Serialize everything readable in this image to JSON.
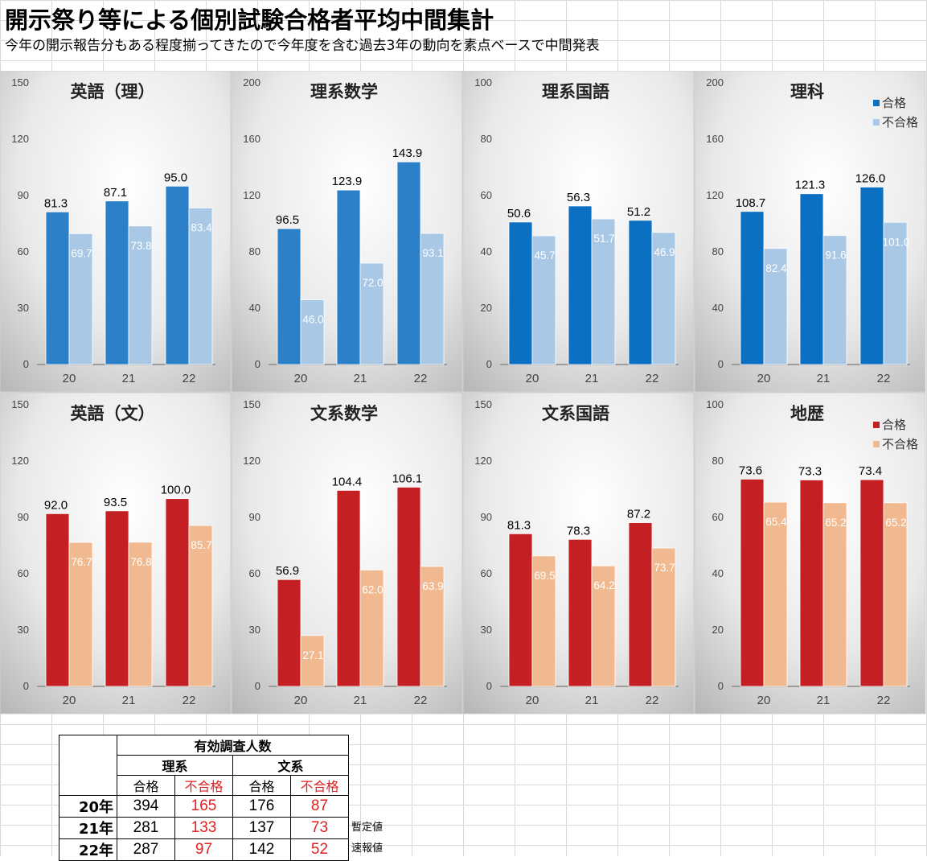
{
  "header": {
    "title": "開示祭り等による個別試験合格者平均中間集計",
    "subtitle": "今年の開示報告分もある程度揃ってきたので今年度を含む過去3年の動向を素点ベースで中間発表"
  },
  "colors": {
    "sci_pass": "#2b80c8",
    "sci_pass_dark": "#0b6fc2",
    "sci_fail": "#a8c8e6",
    "hum_pass": "#c42024",
    "hum_fail": "#f0b990"
  },
  "legend_science": {
    "pass": "合格",
    "fail": "不合格"
  },
  "legend_humanities": {
    "pass": "合格",
    "fail": "不合格"
  },
  "chart_data": [
    {
      "type": "bar",
      "title": "英語（理）",
      "categories": [
        "20",
        "21",
        "22"
      ],
      "ylim": [
        0,
        150
      ],
      "ticks": [
        0,
        30,
        60,
        90,
        120,
        150
      ],
      "series": [
        {
          "name": "合格",
          "values": [
            81.3,
            87.1,
            95.0
          ]
        },
        {
          "name": "不合格",
          "values": [
            69.7,
            73.8,
            83.4
          ]
        }
      ],
      "palette": "science"
    },
    {
      "type": "bar",
      "title": "理系数学",
      "categories": [
        "20",
        "21",
        "22"
      ],
      "ylim": [
        0,
        200
      ],
      "ticks": [
        0,
        40,
        80,
        120,
        160,
        200
      ],
      "series": [
        {
          "name": "合格",
          "values": [
            96.5,
            123.9,
            143.9
          ]
        },
        {
          "name": "不合格",
          "values": [
            46.0,
            72.0,
            93.1
          ]
        }
      ],
      "palette": "science"
    },
    {
      "type": "bar",
      "title": "理系国語",
      "categories": [
        "20",
        "21",
        "22"
      ],
      "ylim": [
        0,
        100
      ],
      "ticks": [
        0,
        20,
        40,
        60,
        80,
        100
      ],
      "series": [
        {
          "name": "合格",
          "values": [
            50.6,
            56.3,
            51.2
          ]
        },
        {
          "name": "不合格",
          "values": [
            45.7,
            51.7,
            46.9
          ]
        }
      ],
      "palette": "science_dark"
    },
    {
      "type": "bar",
      "title": "理科",
      "categories": [
        "20",
        "21",
        "22"
      ],
      "ylim": [
        0,
        200
      ],
      "ticks": [
        0,
        40,
        80,
        120,
        160,
        200
      ],
      "series": [
        {
          "name": "合格",
          "values": [
            108.7,
            121.3,
            126.0
          ]
        },
        {
          "name": "不合格",
          "values": [
            82.4,
            91.6,
            101.0
          ]
        }
      ],
      "palette": "science_dark",
      "legend": "science"
    },
    {
      "type": "bar",
      "title": "英語（文）",
      "categories": [
        "20",
        "21",
        "22"
      ],
      "ylim": [
        0,
        150
      ],
      "ticks": [
        0,
        30,
        60,
        90,
        120,
        150
      ],
      "series": [
        {
          "name": "合格",
          "values": [
            92.0,
            93.5,
            100.0
          ]
        },
        {
          "name": "不合格",
          "values": [
            76.7,
            76.8,
            85.7
          ]
        }
      ],
      "palette": "humanities"
    },
    {
      "type": "bar",
      "title": "文系数学",
      "categories": [
        "20",
        "21",
        "22"
      ],
      "ylim": [
        0,
        150
      ],
      "ticks": [
        0,
        30,
        60,
        90,
        120,
        150
      ],
      "series": [
        {
          "name": "合格",
          "values": [
            56.9,
            104.4,
            106.1
          ]
        },
        {
          "name": "不合格",
          "values": [
            27.1,
            62.0,
            63.9
          ]
        }
      ],
      "palette": "humanities"
    },
    {
      "type": "bar",
      "title": "文系国語",
      "categories": [
        "20",
        "21",
        "22"
      ],
      "ylim": [
        0,
        150
      ],
      "ticks": [
        0,
        30,
        60,
        90,
        120,
        150
      ],
      "series": [
        {
          "name": "合格",
          "values": [
            81.3,
            78.3,
            87.2
          ]
        },
        {
          "name": "不合格",
          "values": [
            69.5,
            64.2,
            73.7
          ]
        }
      ],
      "palette": "humanities"
    },
    {
      "type": "bar",
      "title": "地歴",
      "categories": [
        "20",
        "21",
        "22"
      ],
      "ylim": [
        0,
        100
      ],
      "ticks": [
        0,
        20,
        40,
        60,
        80,
        100
      ],
      "series": [
        {
          "name": "合格",
          "values": [
            73.6,
            73.3,
            73.4
          ]
        },
        {
          "name": "不合格",
          "values": [
            65.4,
            65.2,
            65.2
          ]
        }
      ],
      "palette": "humanities",
      "legend": "humanities"
    }
  ],
  "table": {
    "title": "有効調査人数",
    "groups": [
      "理系",
      "文系"
    ],
    "subheaders": [
      "合格",
      "不合格",
      "合格",
      "不合格"
    ],
    "rows": [
      {
        "year": "20年",
        "sci_pass": "394",
        "sci_fail": "165",
        "hum_pass": "176",
        "hum_fail": "87",
        "note": ""
      },
      {
        "year": "21年",
        "sci_pass": "281",
        "sci_fail": "133",
        "hum_pass": "137",
        "hum_fail": "73",
        "note": "暫定値"
      },
      {
        "year": "22年",
        "sci_pass": "287",
        "sci_fail": "97",
        "hum_pass": "142",
        "hum_fail": "52",
        "note": "速報値"
      }
    ]
  }
}
